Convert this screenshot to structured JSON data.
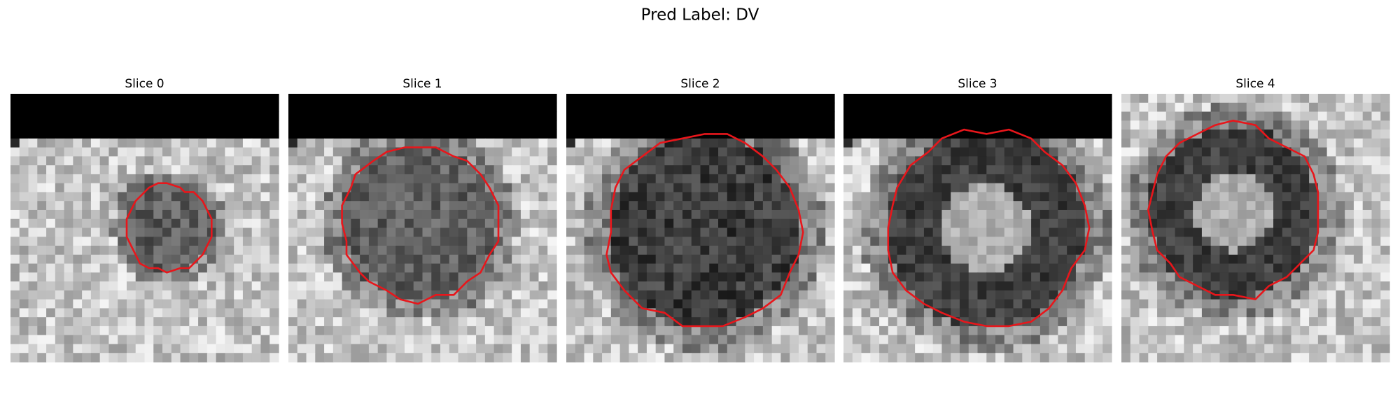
{
  "title": "Pred Label: DV",
  "panels": [
    {
      "title": "Slice 0"
    },
    {
      "title": "Slice 1"
    },
    {
      "title": "Slice 2"
    },
    {
      "title": "Slice 3"
    },
    {
      "title": "Slice 4"
    }
  ]
}
